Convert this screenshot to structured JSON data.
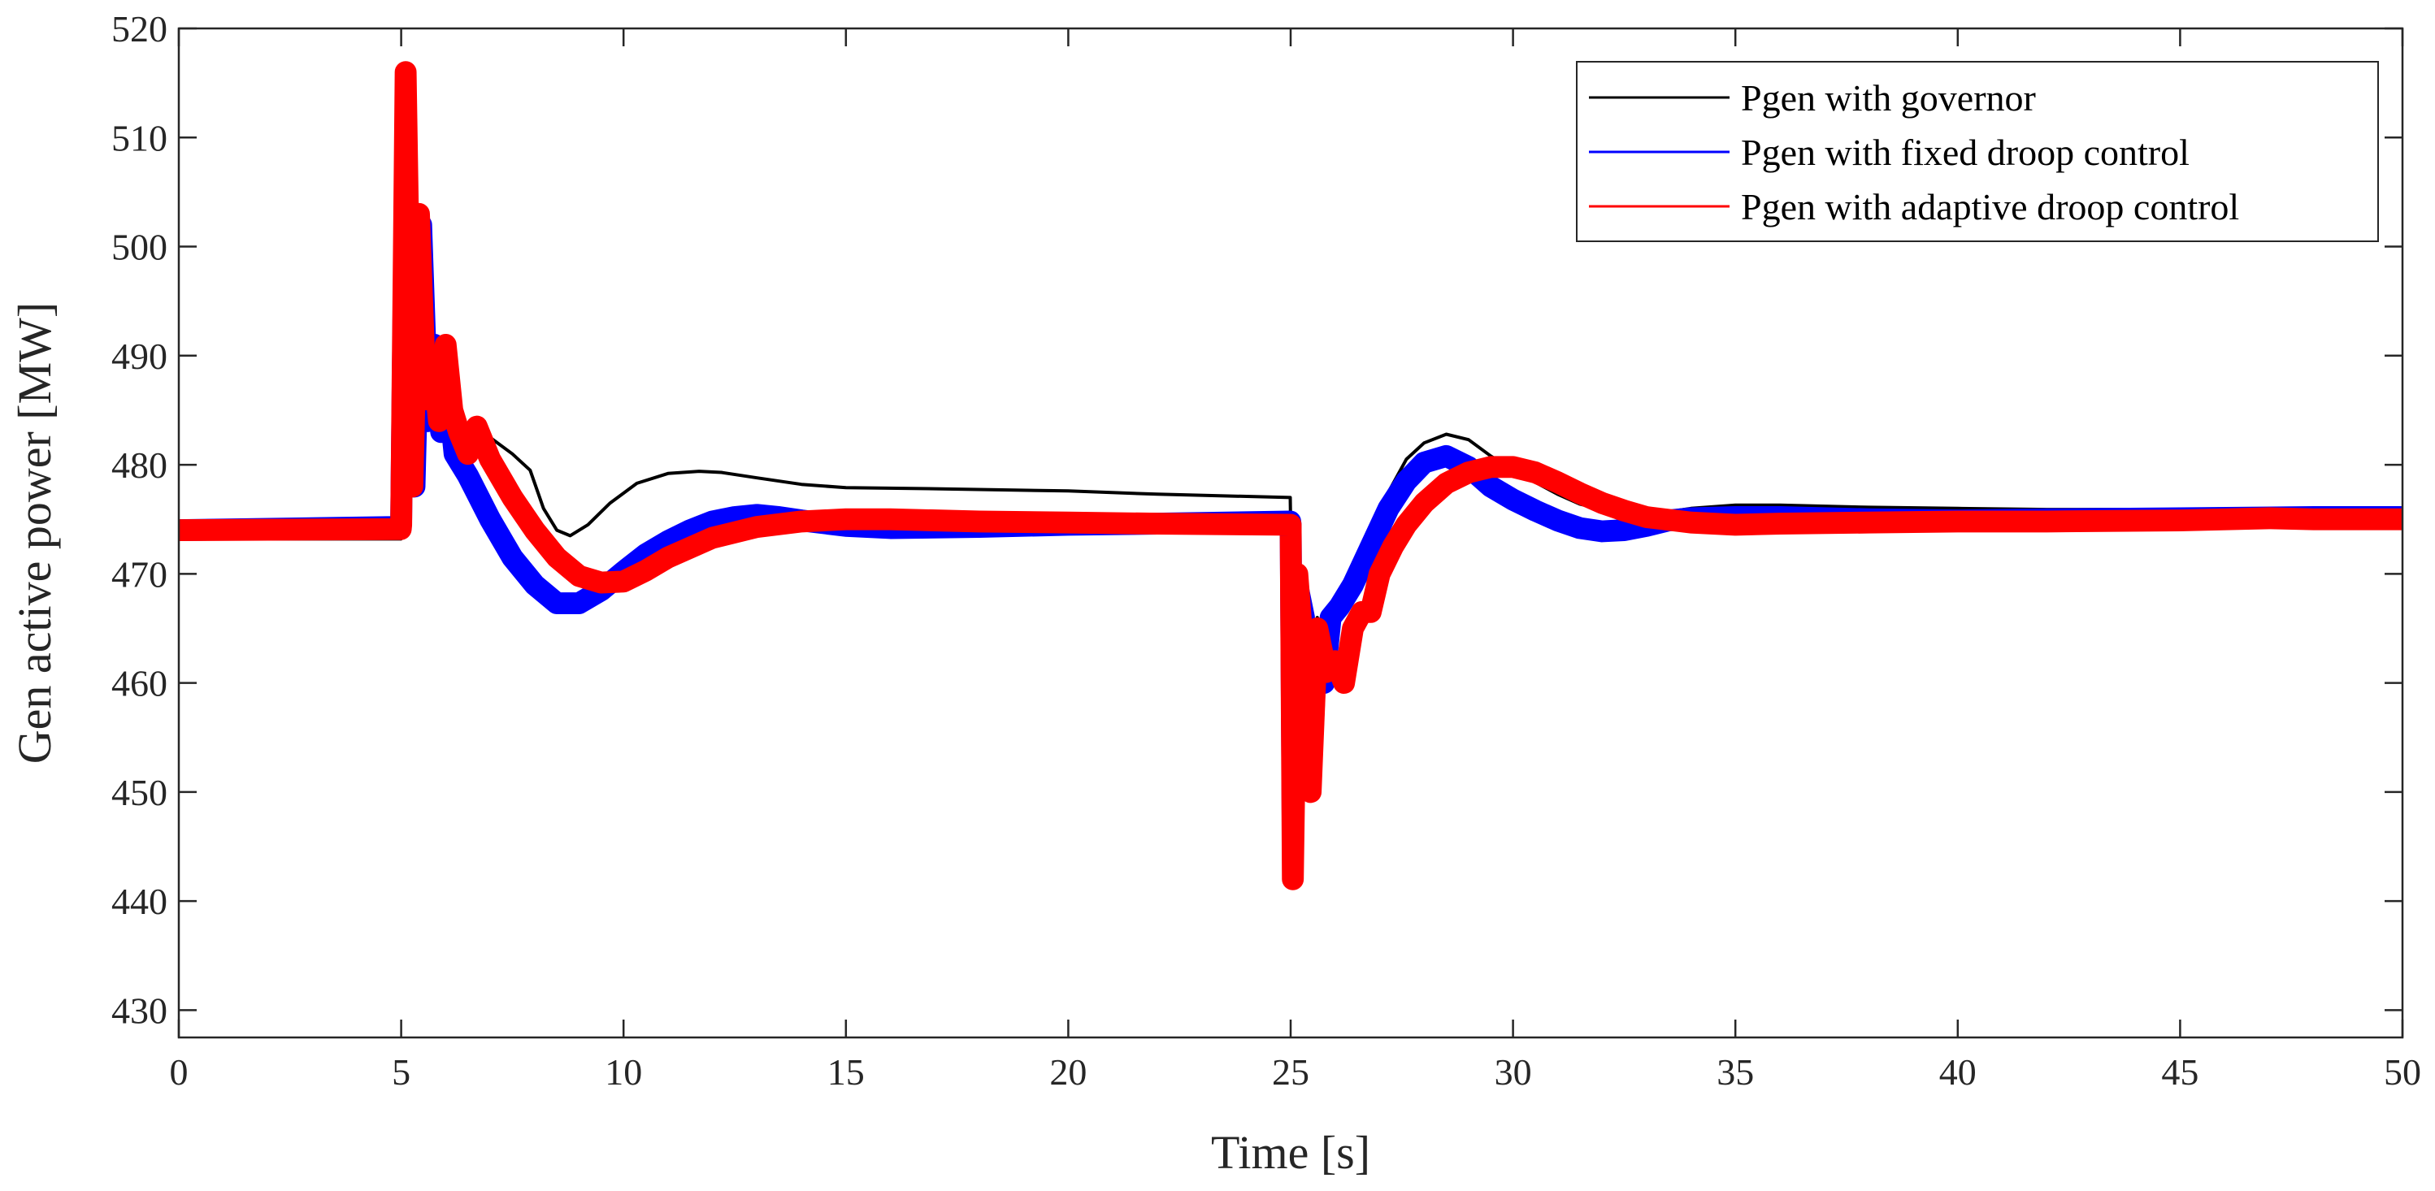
{
  "chart_data": {
    "type": "line",
    "title": "",
    "xlabel": "Time [s]",
    "ylabel": "Gen active power [MW]",
    "xlim": [
      0,
      50
    ],
    "ylim": [
      427.5,
      520
    ],
    "xticks": [
      0,
      5,
      10,
      15,
      20,
      25,
      30,
      35,
      40,
      45,
      50
    ],
    "yticks": [
      430,
      440,
      450,
      460,
      470,
      480,
      490,
      500,
      510,
      520
    ],
    "legend_position": "top-right",
    "series": [
      {
        "name": "Pgen with governor",
        "color": "#000000",
        "band": 0.3,
        "x": [
          0,
          4.99,
          5.0,
          5.1,
          5.2,
          5.3,
          5.45,
          5.6,
          5.75,
          5.9,
          6.05,
          6.2,
          6.5,
          7.0,
          7.5,
          7.9,
          8.2,
          8.5,
          8.8,
          9.2,
          9.7,
          10.3,
          11.0,
          11.7,
          12.2,
          13.0,
          14.0,
          15.0,
          17.0,
          20.0,
          22.0,
          24.99,
          25.0,
          25.05,
          25.15,
          25.3,
          25.45,
          25.6,
          25.75,
          25.9,
          26.1,
          26.4,
          26.8,
          27.2,
          27.6,
          28.0,
          28.5,
          29.0,
          29.5,
          30.0,
          30.5,
          31.0,
          31.5,
          32.0,
          32.5,
          33.0,
          33.5,
          34.0,
          35.0,
          36.0,
          38.0,
          40.0,
          42.0,
          45.0,
          48.0,
          50.0
        ],
        "y": [
          473.2,
          473.2,
          474.5,
          512.0,
          495.0,
          480.0,
          502.0,
          486.0,
          490.0,
          484.5,
          485.5,
          484.0,
          483.5,
          482.5,
          481.0,
          479.5,
          476.0,
          474.0,
          473.5,
          474.5,
          476.5,
          478.3,
          479.2,
          479.4,
          479.3,
          478.8,
          478.2,
          477.9,
          477.8,
          477.6,
          477.3,
          477.0,
          474.5,
          447.0,
          468.0,
          469.0,
          451.0,
          466.0,
          462.0,
          466.0,
          468.0,
          469.0,
          474.0,
          477.5,
          480.5,
          482.0,
          482.8,
          482.3,
          480.8,
          479.5,
          478.4,
          477.3,
          476.4,
          475.9,
          475.6,
          475.5,
          475.7,
          476.0,
          476.3,
          476.3,
          476.1,
          476.0,
          475.9,
          475.9,
          475.9,
          475.9
        ]
      },
      {
        "name": "Pgen with fixed droop control",
        "color": "#0000ff",
        "band": 1.0,
        "x": [
          0,
          4.99,
          5.0,
          5.1,
          5.2,
          5.3,
          5.45,
          5.6,
          5.75,
          5.9,
          6.05,
          6.2,
          6.5,
          7.0,
          7.5,
          8.0,
          8.5,
          9.0,
          9.5,
          10.0,
          10.5,
          11.0,
          11.5,
          12.0,
          12.5,
          13.0,
          13.5,
          14.0,
          15.0,
          16.0,
          18.0,
          20.0,
          22.0,
          24.99,
          25.0,
          25.05,
          25.15,
          25.3,
          25.45,
          25.6,
          25.75,
          25.9,
          26.1,
          26.4,
          26.8,
          27.2,
          27.6,
          28.0,
          28.5,
          29.0,
          29.5,
          30.0,
          30.5,
          31.0,
          31.5,
          32.0,
          32.5,
          33.0,
          33.5,
          34.0,
          35.0,
          36.0,
          38.0,
          40.0,
          42.0,
          45.0,
          48.0,
          50.0
        ],
        "y": [
          474.0,
          474.3,
          475.0,
          511.0,
          492.0,
          478.0,
          502.0,
          484.0,
          491.0,
          483.0,
          487.0,
          481.0,
          479.0,
          475.0,
          471.5,
          469.0,
          467.3,
          467.3,
          468.5,
          470.2,
          471.8,
          473.0,
          474.0,
          474.8,
          475.2,
          475.4,
          475.2,
          474.9,
          474.4,
          474.2,
          474.3,
          474.5,
          474.6,
          474.8,
          474.5,
          445.0,
          469.0,
          466.0,
          451.0,
          465.0,
          460.0,
          466.0,
          467.0,
          469.0,
          472.5,
          476.0,
          478.5,
          480.2,
          480.8,
          479.8,
          478.0,
          476.8,
          475.8,
          474.9,
          474.2,
          473.9,
          474.0,
          474.4,
          474.9,
          475.1,
          475.2,
          475.2,
          475.0,
          474.9,
          475.0,
          475.1,
          475.2,
          475.2
        ]
      },
      {
        "name": "Pgen with adaptive droop control",
        "color": "#ff0000",
        "band": 1.0,
        "x": [
          0,
          4.99,
          5.0,
          5.1,
          5.25,
          5.4,
          5.55,
          5.7,
          5.85,
          6.0,
          6.15,
          6.3,
          6.5,
          6.7,
          7.0,
          7.5,
          8.0,
          8.5,
          9.0,
          9.5,
          10.0,
          10.5,
          11.0,
          12.0,
          13.0,
          14.0,
          15.0,
          16.0,
          18.0,
          20.0,
          22.0,
          24.99,
          25.0,
          25.05,
          25.15,
          25.3,
          25.45,
          25.6,
          25.8,
          26.0,
          26.2,
          26.4,
          26.6,
          26.8,
          27.0,
          27.3,
          27.6,
          28.0,
          28.5,
          29.0,
          29.5,
          30.0,
          30.5,
          31.0,
          31.5,
          32.0,
          32.5,
          33.0,
          34.0,
          35.0,
          36.0,
          38.0,
          40.0,
          42.0,
          45.0,
          47.0,
          48.0,
          50.0
        ],
        "y": [
          474.0,
          474.1,
          474.5,
          516.0,
          478.0,
          503.0,
          486.0,
          490.0,
          484.0,
          491.0,
          485.0,
          483.0,
          481.0,
          483.5,
          480.5,
          477.0,
          474.0,
          471.5,
          469.8,
          469.2,
          469.3,
          470.3,
          471.5,
          473.3,
          474.3,
          474.8,
          475.0,
          475.0,
          474.8,
          474.7,
          474.6,
          474.5,
          474.5,
          442.0,
          470.0,
          462.0,
          450.0,
          465.0,
          461.0,
          462.0,
          460.0,
          465.0,
          466.5,
          466.5,
          470.0,
          472.5,
          474.5,
          476.5,
          478.3,
          479.3,
          479.8,
          479.8,
          479.3,
          478.4,
          477.4,
          476.5,
          475.8,
          475.2,
          474.7,
          474.5,
          474.6,
          474.7,
          474.8,
          474.8,
          474.9,
          475.1,
          475.0,
          475.0
        ]
      }
    ]
  }
}
